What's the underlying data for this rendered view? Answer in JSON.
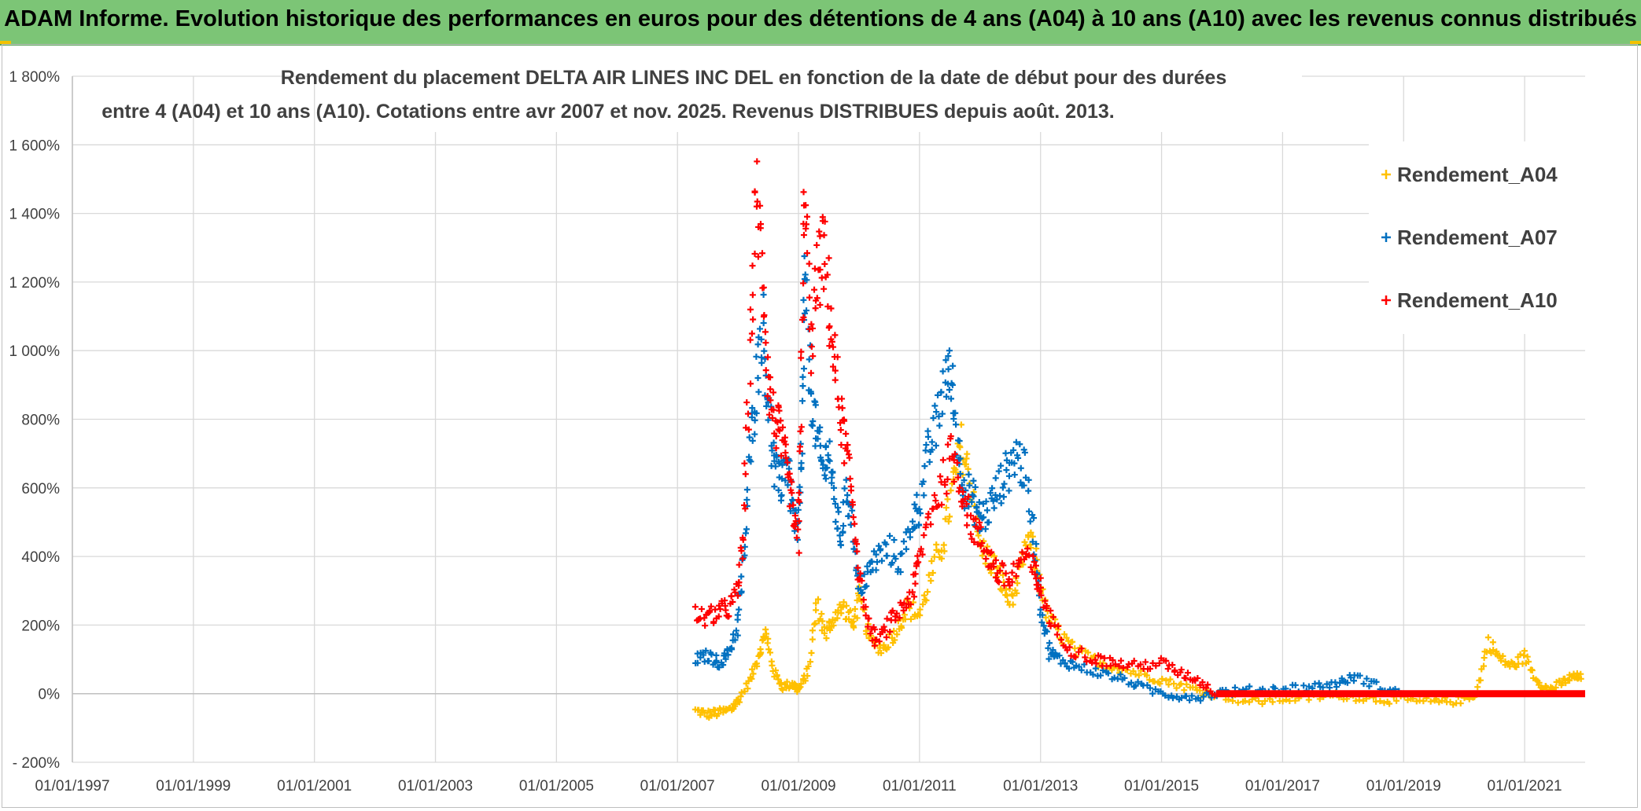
{
  "banner": {
    "title": "ADAM Informe. Evolution historique des performances en euros pour des détentions de 4 ans (A04) à 10 ans (A10) avec les revenus connus distribués"
  },
  "chart_data": {
    "type": "scatter",
    "title_line1": "Rendement du placement DELTA AIR LINES INC DEL en fonction de la date de début pour des durées",
    "title_line2": "entre 4 (A04) et 10 ans (A10). Cotations entre avr 2007 et nov. 2025. Revenus DISTRIBUES depuis août. 2013.",
    "xlabel": "",
    "ylabel": "",
    "xlim": [
      1997.0,
      2022.0
    ],
    "ylim": [
      -200,
      1800
    ],
    "y_ticks": [
      -200,
      0,
      200,
      400,
      600,
      800,
      1000,
      1200,
      1400,
      1600,
      1800
    ],
    "y_tick_labels": [
      "- 200%",
      "0%",
      "200%",
      "400%",
      "600%",
      "800%",
      "1 000%",
      "1 200%",
      "1 400%",
      "1 600%",
      "1 800%"
    ],
    "x_ticks": [
      1997,
      1999,
      2001,
      2003,
      2005,
      2007,
      2009,
      2011,
      2013,
      2015,
      2017,
      2019,
      2021
    ],
    "x_tick_labels": [
      "01/01/1997",
      "01/01/1999",
      "01/01/2001",
      "01/01/2003",
      "01/01/2005",
      "01/01/2007",
      "01/01/2009",
      "01/01/2011",
      "01/01/2013",
      "01/01/2015",
      "01/01/2017",
      "01/01/2019",
      "01/01/2021"
    ],
    "grid": true,
    "legend_position": "right",
    "marker": "+",
    "series": [
      {
        "name": "Rendement_A04",
        "color": "#ffc000",
        "x": [
          2007.3,
          2007.5,
          2007.7,
          2007.9,
          2008.0,
          2008.2,
          2008.35,
          2008.45,
          2008.6,
          2008.75,
          2008.9,
          2009.0,
          2009.15,
          2009.3,
          2009.45,
          2009.6,
          2009.75,
          2009.9,
          2010.0,
          2010.2,
          2010.4,
          2010.6,
          2010.8,
          2011.0,
          2011.2,
          2011.4,
          2011.55,
          2011.7,
          2011.85,
          2012.0,
          2012.2,
          2012.35,
          2012.5,
          2012.65,
          2012.8,
          2012.95,
          2013.1,
          2013.3,
          2013.6,
          2014.0,
          2014.4,
          2014.8,
          2015.2,
          2015.6,
          2016.0,
          2016.5,
          2017.0,
          2017.5,
          2018.0,
          2018.5,
          2019.0,
          2019.5,
          2019.9,
          2020.2,
          2020.4,
          2020.6,
          2020.8,
          2021.0,
          2021.2,
          2021.4,
          2021.6,
          2021.8,
          2021.95
        ],
        "y": [
          -50,
          -60,
          -55,
          -45,
          -20,
          40,
          120,
          180,
          60,
          20,
          30,
          10,
          60,
          260,
          170,
          230,
          250,
          200,
          280,
          150,
          130,
          180,
          250,
          230,
          350,
          450,
          600,
          720,
          620,
          430,
          380,
          330,
          270,
          340,
          450,
          370,
          230,
          180,
          120,
          90,
          70,
          50,
          30,
          10,
          -5,
          -25,
          -15,
          -10,
          -5,
          -15,
          -20,
          -25,
          -20,
          0,
          150,
          100,
          80,
          110,
          40,
          10,
          30,
          50,
          45
        ]
      },
      {
        "name": "Rendement_A07",
        "color": "#0070c0",
        "x": [
          2007.3,
          2007.5,
          2007.7,
          2007.85,
          2008.0,
          2008.1,
          2008.2,
          2008.3,
          2008.4,
          2008.5,
          2008.6,
          2008.7,
          2008.8,
          2008.9,
          2009.0,
          2009.05,
          2009.1,
          2009.2,
          2009.3,
          2009.4,
          2009.5,
          2009.6,
          2009.7,
          2009.8,
          2009.9,
          2010.0,
          2010.15,
          2010.3,
          2010.5,
          2010.7,
          2010.9,
          2011.0,
          2011.15,
          2011.3,
          2011.45,
          2011.55,
          2011.65,
          2011.75,
          2011.9,
          2012.0,
          2012.15,
          2012.3,
          2012.45,
          2012.6,
          2012.75,
          2012.9,
          2013.0,
          2013.15,
          2013.3,
          2013.6,
          2014.0,
          2014.4,
          2014.8,
          2015.2,
          2015.6,
          2016.0,
          2016.5,
          2017.0,
          2017.5,
          2017.9,
          2018.2,
          2018.6,
          2019.0
        ],
        "y": [
          100,
          110,
          90,
          120,
          200,
          400,
          700,
          900,
          1100,
          850,
          650,
          600,
          700,
          550,
          450,
          700,
          1200,
          900,
          750,
          650,
          720,
          550,
          450,
          600,
          480,
          300,
          350,
          400,
          420,
          380,
          520,
          550,
          700,
          800,
          950,
          880,
          700,
          600,
          560,
          500,
          540,
          600,
          650,
          700,
          640,
          450,
          250,
          120,
          100,
          80,
          60,
          40,
          10,
          -5,
          -10,
          5,
          10,
          15,
          20,
          30,
          50,
          20,
          0
        ]
      },
      {
        "name": "Rendement_A10",
        "color": "#ff0000",
        "x": [
          2007.3,
          2007.5,
          2007.7,
          2007.85,
          2008.0,
          2008.1,
          2008.2,
          2008.3,
          2008.4,
          2008.5,
          2008.6,
          2008.7,
          2008.8,
          2008.9,
          2009.0,
          2009.05,
          2009.1,
          2009.2,
          2009.3,
          2009.4,
          2009.5,
          2009.6,
          2009.7,
          2009.8,
          2009.9,
          2010.0,
          2010.15,
          2010.3,
          2010.5,
          2010.7,
          2010.9,
          2011.0,
          2011.2,
          2011.4,
          2011.55,
          2011.7,
          2011.85,
          2012.0,
          2012.15,
          2012.3,
          2012.5,
          2012.7,
          2012.9,
          2013.0,
          2013.2,
          2013.5,
          2013.9,
          2014.2,
          2014.6,
          2015.0,
          2015.3,
          2015.6,
          2015.9
        ],
        "y": [
          230,
          220,
          240,
          250,
          300,
          500,
          1000,
          1450,
          1250,
          900,
          800,
          750,
          650,
          550,
          420,
          900,
          1550,
          1000,
          1200,
          1300,
          1150,
          950,
          800,
          700,
          550,
          350,
          200,
          150,
          200,
          250,
          300,
          400,
          550,
          620,
          700,
          600,
          500,
          450,
          400,
          350,
          330,
          400,
          360,
          300,
          200,
          130,
          100,
          90,
          80,
          90,
          60,
          40,
          0
        ]
      }
    ],
    "flat_segment": {
      "series": "Rendement_A10",
      "x_start": 2015.9,
      "x_end": 2022.0,
      "y": 0
    }
  }
}
